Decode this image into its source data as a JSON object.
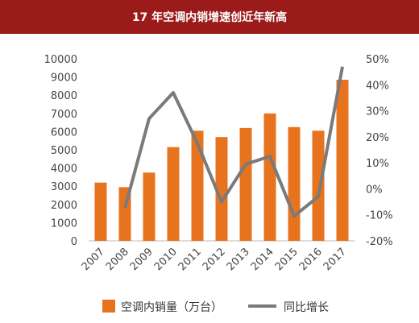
{
  "chart_data": {
    "type": "bar",
    "title": "17 年空调内销增速创近年新高",
    "categories": [
      "2007",
      "2008",
      "2009",
      "2010",
      "2011",
      "2012",
      "2013",
      "2014",
      "2015",
      "2016",
      "2017"
    ],
    "series": [
      {
        "name": "空调内销量（万台）",
        "type": "bar",
        "axis": "left",
        "color": "#e8731f",
        "values": [
          3200,
          2950,
          3750,
          5150,
          6050,
          5700,
          6200,
          7000,
          6250,
          6050,
          8850
        ]
      },
      {
        "name": "同比增长",
        "type": "line",
        "axis": "right",
        "color": "#7a7a7a",
        "values": [
          null,
          -7.5,
          27,
          37,
          17.5,
          -5,
          9.5,
          12.5,
          -10.5,
          -3,
          47
        ]
      }
    ],
    "y_left": {
      "min": 0,
      "max": 10000,
      "step": 1000,
      "ticks": [
        "0",
        "1000",
        "2000",
        "3000",
        "4000",
        "5000",
        "6000",
        "7000",
        "8000",
        "9000",
        "10000"
      ]
    },
    "y_right": {
      "min": -20,
      "max": 50,
      "step": 10,
      "ticks": [
        "-20%",
        "-10%",
        "0%",
        "10%",
        "20%",
        "30%",
        "40%",
        "50%"
      ]
    },
    "grid": false,
    "legend": "bottom"
  }
}
